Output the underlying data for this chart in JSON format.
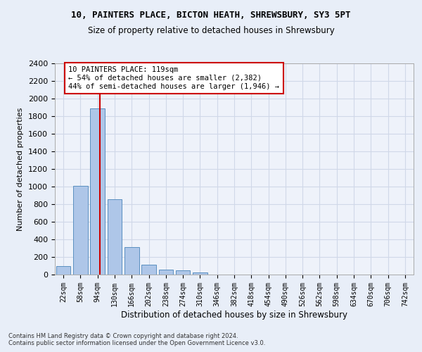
{
  "title_line1": "10, PAINTERS PLACE, BICTON HEATH, SHREWSBURY, SY3 5PT",
  "title_line2": "Size of property relative to detached houses in Shrewsbury",
  "xlabel": "Distribution of detached houses by size in Shrewsbury",
  "ylabel": "Number of detached properties",
  "categories": [
    "22sqm",
    "58sqm",
    "94sqm",
    "130sqm",
    "166sqm",
    "202sqm",
    "238sqm",
    "274sqm",
    "310sqm",
    "346sqm",
    "382sqm",
    "418sqm",
    "454sqm",
    "490sqm",
    "526sqm",
    "562sqm",
    "598sqm",
    "634sqm",
    "670sqm",
    "706sqm",
    "742sqm"
  ],
  "bar_heights": [
    95,
    1010,
    1890,
    860,
    315,
    115,
    57,
    48,
    28,
    0,
    0,
    0,
    0,
    0,
    0,
    0,
    0,
    0,
    0,
    0,
    0
  ],
  "bar_color": "#aec6e8",
  "bar_edge_color": "#5a8fc0",
  "ylim_max": 2400,
  "yticks": [
    0,
    200,
    400,
    600,
    800,
    1000,
    1200,
    1400,
    1600,
    1800,
    2000,
    2200,
    2400
  ],
  "vline_x": 2.15,
  "vline_color": "#cc0000",
  "annotation_text_line1": "10 PAINTERS PLACE: 119sqm",
  "annotation_text_line2": "← 54% of detached houses are smaller (2,382)",
  "annotation_text_line3": "44% of semi-detached houses are larger (1,946) →",
  "footer_line1": "Contains HM Land Registry data © Crown copyright and database right 2024.",
  "footer_line2": "Contains public sector information licensed under the Open Government Licence v3.0.",
  "grid_color": "#d0d8e8",
  "background_color": "#e8eef8",
  "plot_bg_color": "#eef2fa"
}
